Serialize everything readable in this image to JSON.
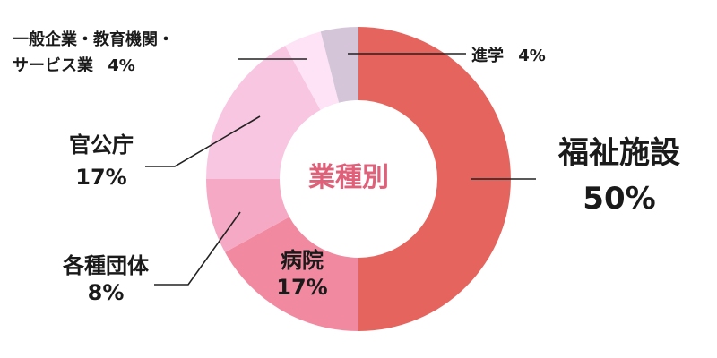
{
  "center_label": "業種別",
  "colors": {
    "welfare": "#e5645d",
    "hospital": "#f18aa0",
    "groups": "#f6a9c4",
    "government": "#f9c6e2",
    "company": "#fde3f5",
    "school": "#d4c6d8",
    "center_text": "#e0607a"
  },
  "chart_data": {
    "type": "pie",
    "title": "業種別",
    "categories": [
      "福祉施設",
      "病院",
      "各種団体",
      "官公庁",
      "一般企業・教育機関・サービス業",
      "進学"
    ],
    "values": [
      50,
      17,
      8,
      17,
      4,
      4
    ],
    "unit": "%",
    "donut": true,
    "labels": {
      "welfare": {
        "name": "福祉施設",
        "value": "50%"
      },
      "hospital": {
        "name": "病院",
        "value": "17%"
      },
      "groups": {
        "name": "各種団体",
        "value": "8%"
      },
      "government": {
        "name": "官公庁",
        "value": "17%"
      },
      "company": {
        "name_line1": "一般企業・教育機関・",
        "name_line2": "サービス業",
        "value": "4%"
      },
      "school": {
        "name": "進学",
        "value": "4%"
      }
    }
  }
}
